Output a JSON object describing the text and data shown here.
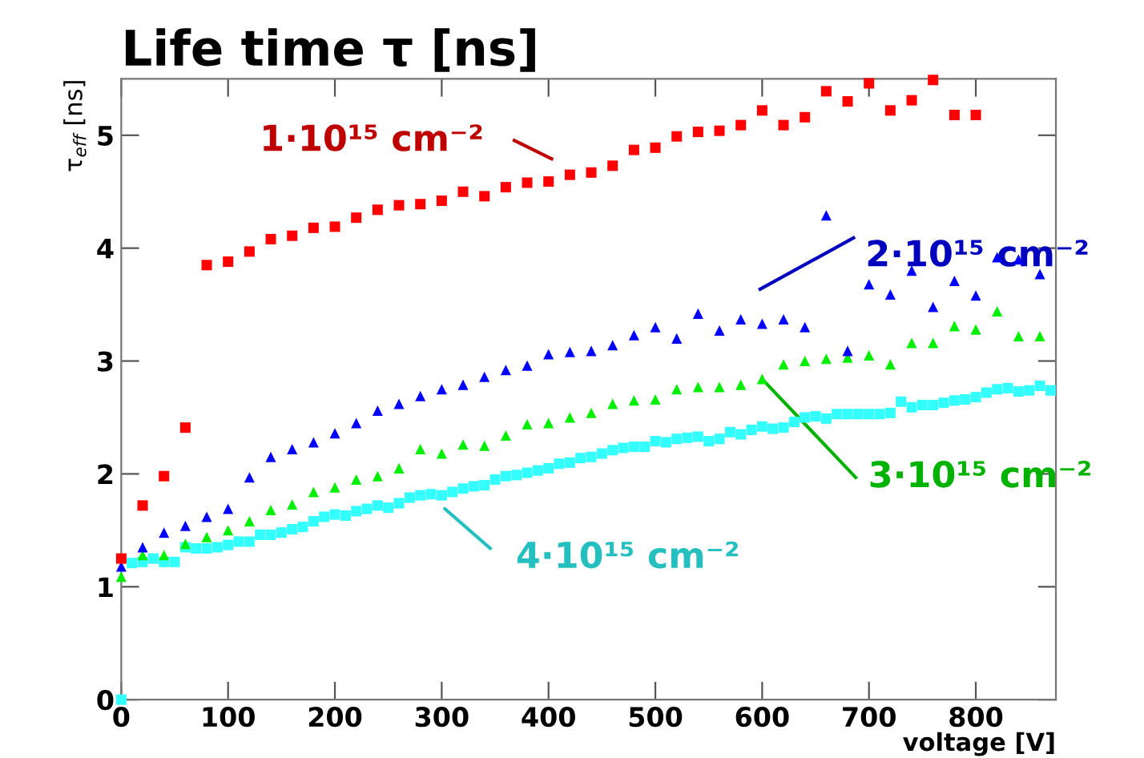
{
  "chart_data": {
    "type": "scatter",
    "title": "Life time τ [ns]",
    "xlabel": "voltage [V]",
    "ylabel": "τ$_{eff}$ [ns]",
    "xlim": [
      0,
      875
    ],
    "xticks": [
      0,
      100,
      200,
      300,
      400,
      500,
      600,
      700,
      800
    ],
    "ylim": [
      0,
      5.5
    ],
    "yticks": [
      0,
      1,
      2,
      3,
      4,
      5
    ],
    "grid": false,
    "legend": false,
    "series": [
      {
        "color": "#ff0000",
        "marker": "square",
        "x": [
          0,
          20,
          40,
          60,
          80,
          100,
          120,
          140,
          160,
          180,
          200,
          220,
          240,
          260,
          280,
          300,
          320,
          340,
          360,
          380,
          400,
          420,
          440,
          460,
          480,
          500,
          520,
          540,
          560,
          580,
          600,
          620,
          640,
          660,
          680,
          700,
          720,
          740,
          760,
          780,
          800
        ],
        "values": [
          1.25,
          1.72,
          1.98,
          2.41,
          3.85,
          3.88,
          3.97,
          4.08,
          4.11,
          4.18,
          4.19,
          4.27,
          4.34,
          4.38,
          4.39,
          4.42,
          4.5,
          4.46,
          4.54,
          4.58,
          4.59,
          4.65,
          4.67,
          4.73,
          4.87,
          4.89,
          4.99,
          5.03,
          5.04,
          5.09,
          5.22,
          5.09,
          5.16,
          5.39,
          5.3,
          5.46,
          5.22,
          5.31,
          5.49,
          5.18,
          5.18
        ]
      },
      {
        "color": "#0000ff",
        "marker": "triangle",
        "x": [
          0,
          20,
          40,
          60,
          80,
          100,
          120,
          140,
          160,
          180,
          200,
          220,
          240,
          260,
          280,
          300,
          320,
          340,
          360,
          380,
          400,
          420,
          440,
          460,
          480,
          500,
          520,
          540,
          560,
          580,
          600,
          620,
          640,
          660,
          680,
          700,
          720,
          740,
          760,
          780,
          800,
          820,
          840,
          860
        ],
        "values": [
          1.18,
          1.35,
          1.48,
          1.54,
          1.62,
          1.69,
          1.97,
          2.15,
          2.22,
          2.28,
          2.36,
          2.45,
          2.56,
          2.62,
          2.69,
          2.75,
          2.79,
          2.86,
          2.92,
          2.96,
          3.06,
          3.08,
          3.09,
          3.14,
          3.23,
          3.3,
          3.2,
          3.42,
          3.27,
          3.37,
          3.33,
          3.37,
          3.3,
          4.29,
          3.09,
          3.68,
          3.59,
          3.8,
          3.48,
          3.71,
          3.58,
          3.92,
          3.9,
          3.77
        ]
      },
      {
        "color": "#00ee00",
        "marker": "triangle",
        "x": [
          0,
          20,
          40,
          60,
          80,
          100,
          120,
          140,
          160,
          180,
          200,
          220,
          240,
          260,
          280,
          300,
          320,
          340,
          360,
          380,
          400,
          420,
          440,
          460,
          480,
          500,
          520,
          540,
          560,
          580,
          600,
          620,
          640,
          660,
          680,
          700,
          720,
          740,
          760,
          780,
          800,
          820,
          840,
          860
        ],
        "values": [
          1.09,
          1.28,
          1.28,
          1.38,
          1.44,
          1.5,
          1.58,
          1.68,
          1.73,
          1.84,
          1.88,
          1.95,
          1.98,
          2.05,
          2.22,
          2.18,
          2.26,
          2.25,
          2.34,
          2.44,
          2.45,
          2.5,
          2.54,
          2.62,
          2.65,
          2.66,
          2.75,
          2.77,
          2.77,
          2.79,
          2.84,
          2.97,
          3.0,
          3.02,
          3.03,
          3.05,
          2.97,
          3.16,
          3.16,
          3.31,
          3.28,
          3.44,
          3.22,
          3.22
        ]
      },
      {
        "color": "#33ffff",
        "marker": "square",
        "x": [
          0,
          10,
          20,
          30,
          40,
          50,
          60,
          70,
          80,
          90,
          100,
          110,
          120,
          130,
          140,
          150,
          160,
          170,
          180,
          190,
          200,
          210,
          220,
          230,
          240,
          250,
          260,
          270,
          280,
          290,
          300,
          310,
          320,
          330,
          340,
          350,
          360,
          370,
          380,
          390,
          400,
          410,
          420,
          430,
          440,
          450,
          460,
          470,
          480,
          490,
          500,
          510,
          520,
          530,
          540,
          550,
          560,
          570,
          580,
          590,
          600,
          610,
          620,
          630,
          640,
          650,
          660,
          670,
          680,
          690,
          700,
          710,
          720,
          730,
          740,
          750,
          760,
          770,
          780,
          790,
          800,
          810,
          820,
          830,
          840,
          850,
          860,
          870
        ],
        "values": [
          0,
          1.21,
          1.22,
          1.25,
          1.22,
          1.22,
          1.35,
          1.34,
          1.34,
          1.35,
          1.37,
          1.4,
          1.4,
          1.46,
          1.46,
          1.48,
          1.51,
          1.53,
          1.58,
          1.62,
          1.64,
          1.63,
          1.67,
          1.69,
          1.72,
          1.7,
          1.74,
          1.79,
          1.81,
          1.82,
          1.81,
          1.84,
          1.87,
          1.89,
          1.9,
          1.95,
          1.98,
          1.99,
          2.01,
          2.03,
          2.05,
          2.09,
          2.1,
          2.14,
          2.15,
          2.18,
          2.21,
          2.23,
          2.24,
          2.24,
          2.29,
          2.28,
          2.31,
          2.32,
          2.33,
          2.29,
          2.31,
          2.37,
          2.35,
          2.39,
          2.42,
          2.4,
          2.41,
          2.46,
          2.5,
          2.51,
          2.49,
          2.53,
          2.53,
          2.53,
          2.53,
          2.53,
          2.54,
          2.64,
          2.59,
          2.61,
          2.61,
          2.63,
          2.65,
          2.66,
          2.68,
          2.72,
          2.75,
          2.76,
          2.73,
          2.74,
          2.78,
          2.74
        ]
      }
    ],
    "annotations": [
      "1·10¹⁵ cm⁻²",
      "2·10¹⁵ cm⁻²",
      {
        "text": "3·10¹⁵ cm⁻²",
        "x": 600,
        "y": 2.84
      },
      "4·10¹⁵ cm⁻²"
    ]
  }
}
